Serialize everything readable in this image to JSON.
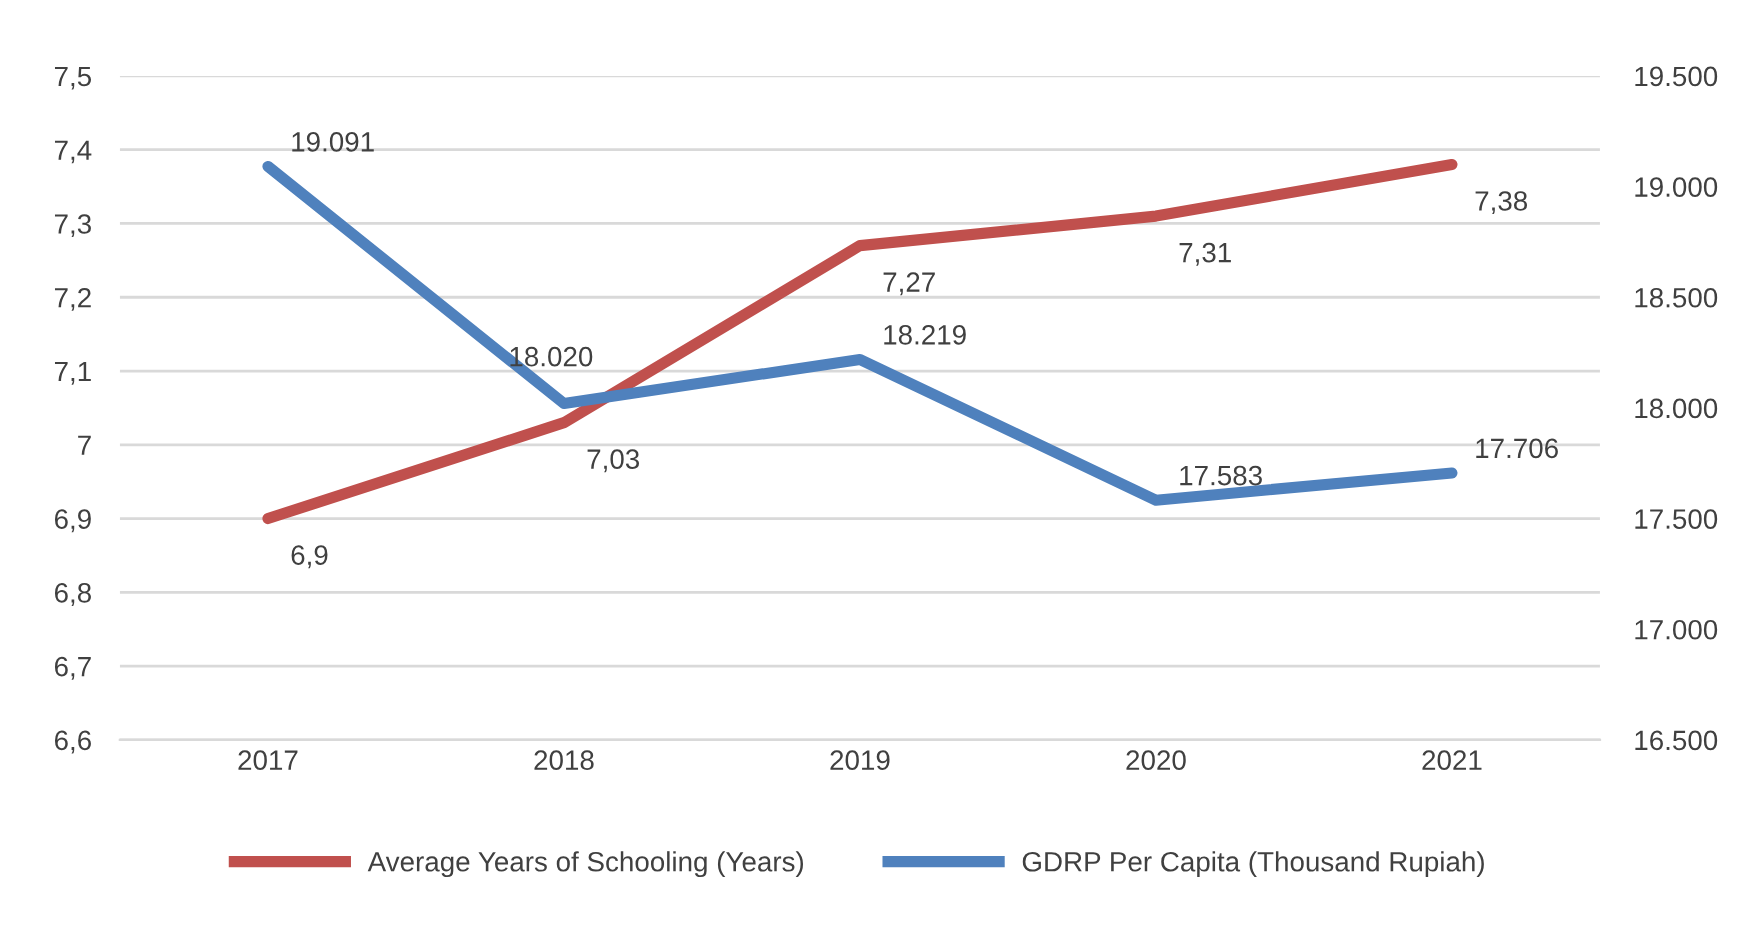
{
  "chart_data": {
    "type": "line",
    "categories": [
      "2017",
      "2018",
      "2019",
      "2020",
      "2021"
    ],
    "series": [
      {
        "name": "Average Years of Schooling (Years)",
        "color": "#c0504d",
        "axis": "y",
        "values": [
          6.9,
          7.03,
          7.27,
          7.31,
          7.38
        ],
        "value_labels": [
          "6,9",
          "7,03",
          "7,27",
          "7,31",
          "7,38"
        ]
      },
      {
        "name": "GDRP Per Capita (Thousand Rupiah)",
        "color": "#4f81bd",
        "axis": "y2",
        "values": [
          19091,
          18020,
          18219,
          17583,
          17706
        ],
        "value_labels": [
          "19.091",
          "18.020",
          "18.219",
          "17.583",
          "17.706"
        ]
      }
    ],
    "ylim": [
      6.6,
      7.5
    ],
    "yticks": [
      {
        "value": 6.6,
        "label": "6,6"
      },
      {
        "value": 6.7,
        "label": "6,7"
      },
      {
        "value": 6.8,
        "label": "6,8"
      },
      {
        "value": 6.9,
        "label": "6,9"
      },
      {
        "value": 7,
        "label": "7"
      },
      {
        "value": 7.1,
        "label": "7,1"
      },
      {
        "value": 7.2,
        "label": "7,2"
      },
      {
        "value": 7.3,
        "label": "7,3"
      },
      {
        "value": 7.4,
        "label": "7,4"
      },
      {
        "value": 7.5,
        "label": "7,5"
      }
    ],
    "y2lim": [
      16500,
      19500
    ],
    "y2ticks": [
      {
        "value": 16500,
        "label": "16.500"
      },
      {
        "value": 17000,
        "label": "17.000"
      },
      {
        "value": 17500,
        "label": "17.500"
      },
      {
        "value": 18000,
        "label": "18.000"
      },
      {
        "value": 18500,
        "label": "18.500"
      },
      {
        "value": 19000,
        "label": "19.000"
      },
      {
        "value": 19500,
        "label": "19.500"
      }
    ],
    "grid": "y",
    "legend": "bottom",
    "marker": "none",
    "line_style": "solid"
  }
}
